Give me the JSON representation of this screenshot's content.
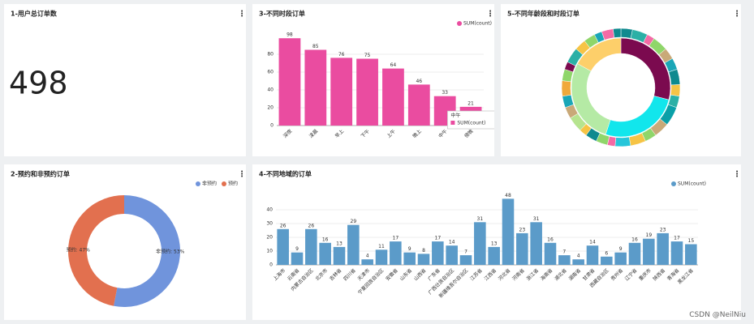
{
  "kpi": {
    "title": "1-用户总订单数",
    "value": 498
  },
  "chart_data": [
    {
      "type": "bar",
      "title": "3-不同时段订单",
      "categories": [
        "深夜",
        "凌晨",
        "早上",
        "下午",
        "上午",
        "晚上",
        "中午",
        "傍晚"
      ],
      "series": [
        {
          "name": "SUM(count)",
          "color": "#ea4ca0",
          "values": [
            98,
            85,
            76,
            75,
            64,
            46,
            33,
            21
          ]
        }
      ],
      "ylim": [
        0,
        100
      ],
      "yticks": [
        0,
        20,
        40,
        60,
        80
      ],
      "grid": true,
      "legend": "top-right",
      "tooltip_index": 6
    },
    {
      "type": "sunburst",
      "title": "5-不同年龄段和时段订单",
      "rings": [
        {
          "values": [
            29,
            26,
            28,
            17
          ],
          "colors": [
            "#7b0a4f",
            "#12e6ec",
            "#b5eaa5",
            "#fdcf6a"
          ]
        },
        {
          "values": [
            3,
            4,
            2,
            4,
            3,
            3,
            4,
            3,
            3,
            5,
            4,
            3,
            4,
            4,
            2,
            3,
            3,
            2,
            4,
            3,
            3,
            4,
            3,
            2,
            4,
            3,
            3,
            2,
            3,
            2
          ],
          "colors": [
            "#0f8a8f",
            "#2bb0a6",
            "#f46aa5",
            "#8fd66a",
            "#c9a978",
            "#1aa6b7",
            "#0f8a8f",
            "#f6c445",
            "#2bb0a6",
            "#0aa0a8",
            "#c9a978",
            "#8fd66a",
            "#f6c445",
            "#26c6da",
            "#f46aa5",
            "#8fd66a",
            "#0f8a8f",
            "#f6c445",
            "#b6e48f",
            "#c9a978",
            "#1aa6b7",
            "#f0a93a",
            "#8fd66a",
            "#7b0a4f",
            "#2bb0a6",
            "#f6c445",
            "#8fd66a",
            "#1aa6b7",
            "#f46aa5",
            "#0f8a8f"
          ]
        }
      ]
    },
    {
      "type": "donut",
      "title": "2-预约和非预约订单",
      "categories": [
        "非预约",
        "预约"
      ],
      "values": [
        53,
        47
      ],
      "value_labels": [
        "非预约: 53%",
        "预约: 47%"
      ],
      "colors": [
        "#7094dc",
        "#e2704f"
      ],
      "legend": "top-right"
    },
    {
      "type": "bar",
      "title": "4-不同地域的订单",
      "categories": [
        "上海市",
        "云南省",
        "内蒙古自治区",
        "北京市",
        "吉林省",
        "四川省",
        "天津市",
        "宁夏回族自治区",
        "安徽省",
        "山东省",
        "山西省",
        "广东省",
        "广西壮族自治区",
        "新疆维吾尔自治区",
        "江苏省",
        "江西省",
        "河北省",
        "河南省",
        "浙江省",
        "海南省",
        "湖北省",
        "湖南省",
        "甘肃省",
        "西藏自治区",
        "贵州省",
        "辽宁省",
        "重庆市",
        "陕西省",
        "青海省",
        "黑龙江省"
      ],
      "series": [
        {
          "name": "SUM(count)",
          "color": "#5b9bc9",
          "values": [
            26,
            9,
            26,
            16,
            13,
            29,
            4,
            11,
            17,
            9,
            8,
            17,
            14,
            7,
            31,
            13,
            48,
            23,
            31,
            16,
            7,
            4,
            14,
            6,
            9,
            16,
            19,
            23,
            17,
            15
          ]
        }
      ],
      "ylim": [
        0,
        50
      ],
      "yticks": [
        0,
        10,
        20,
        30,
        40
      ],
      "grid": true,
      "legend": "top-right"
    }
  ],
  "watermark": "CSDN @NeilNiu"
}
